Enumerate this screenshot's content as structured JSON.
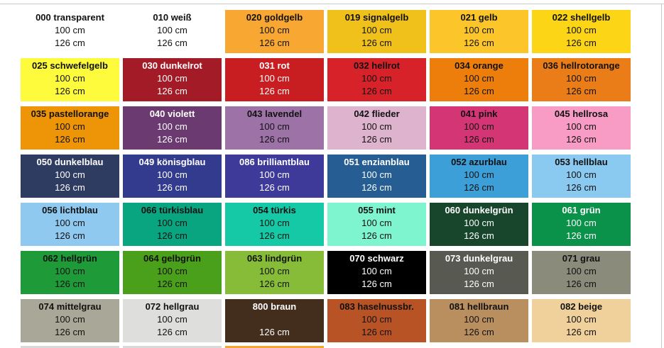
{
  "swatches": [
    {
      "name": "000 transparent",
      "w1": "100 cm",
      "w2": "126 cm",
      "bg": "#ffffff",
      "fg": "#111111"
    },
    {
      "name": "010 weiß",
      "w1": "100 cm",
      "w2": "126 cm",
      "bg": "#ffffff",
      "fg": "#111111"
    },
    {
      "name": "020 goldgelb",
      "w1": "100 cm",
      "w2": "126 cm",
      "bg": "#f8a832",
      "fg": "#111111"
    },
    {
      "name": "019 signalgelb",
      "w1": "100 cm",
      "w2": "126 cm",
      "bg": "#f0c11a",
      "fg": "#111111"
    },
    {
      "name": "021 gelb",
      "w1": "100 cm",
      "w2": "126 cm",
      "bg": "#fcc62a",
      "fg": "#111111"
    },
    {
      "name": "022 shellgelb",
      "w1": "100 cm",
      "w2": "126 cm",
      "bg": "#fcd516",
      "fg": "#111111"
    },
    {
      "name": "025 schwefelgelb",
      "w1": "100 cm",
      "w2": "126 cm",
      "bg": "#fdfb3c",
      "fg": "#111111"
    },
    {
      "name": "030 dunkelrot",
      "w1": "100 cm",
      "w2": "126 cm",
      "bg": "#a31b26",
      "fg": "#ffffff"
    },
    {
      "name": "031 rot",
      "w1": "100 cm",
      "w2": "126 cm",
      "bg": "#c81e22",
      "fg": "#ffffff"
    },
    {
      "name": "032 hellrot",
      "w1": "100 cm",
      "w2": "126 cm",
      "bg": "#d7222a",
      "fg": "#111111"
    },
    {
      "name": "034 orange",
      "w1": "100 cm",
      "w2": "126 cm",
      "bg": "#ed7e0b",
      "fg": "#111111"
    },
    {
      "name": "036 hellrotorange",
      "w1": "100 cm",
      "w2": "126 cm",
      "bg": "#ea7d18",
      "fg": "#111111"
    },
    {
      "name": "035 pastellorange",
      "w1": "100 cm",
      "w2": "126 cm",
      "bg": "#ed9407",
      "fg": "#111111"
    },
    {
      "name": "040 violett",
      "w1": "100 cm",
      "w2": "126 cm",
      "bg": "#6b3a71",
      "fg": "#ffffff"
    },
    {
      "name": "043 lavendel",
      "w1": "100 cm",
      "w2": "126 cm",
      "bg": "#9c72a7",
      "fg": "#111111"
    },
    {
      "name": "042 flieder",
      "w1": "100 cm",
      "w2": "126 cm",
      "bg": "#ddb3cd",
      "fg": "#111111"
    },
    {
      "name": "041 pink",
      "w1": "100 cm",
      "w2": "126 cm",
      "bg": "#d43675",
      "fg": "#111111"
    },
    {
      "name": "045 hellrosa",
      "w1": "100 cm",
      "w2": "126 cm",
      "bg": "#f89bc5",
      "fg": "#111111"
    },
    {
      "name": "050 dunkelblau",
      "w1": "100 cm",
      "w2": "126 cm",
      "bg": "#2f3c61",
      "fg": "#ffffff"
    },
    {
      "name": "049 könisgblau",
      "w1": "100 cm",
      "w2": "126 cm",
      "bg": "#323b8d",
      "fg": "#ffffff"
    },
    {
      "name": "086 brilliantblau",
      "w1": "100 cm",
      "w2": "126 cm",
      "bg": "#3e3a9a",
      "fg": "#ffffff"
    },
    {
      "name": "051 enzianblau",
      "w1": "100 cm",
      "w2": "126 cm",
      "bg": "#265e93",
      "fg": "#ffffff"
    },
    {
      "name": "052 azurblau",
      "w1": "100 cm",
      "w2": "126 cm",
      "bg": "#3c9fd8",
      "fg": "#111111"
    },
    {
      "name": "053 hellblau",
      "w1": "100 cm",
      "w2": "126 cm",
      "bg": "#8ac9f0",
      "fg": "#111111"
    },
    {
      "name": "056 lichtblau",
      "w1": "100 cm",
      "w2": "126 cm",
      "bg": "#90c9ef",
      "fg": "#111111"
    },
    {
      "name": "066 türkisblau",
      "w1": "100 cm",
      "w2": "126 cm",
      "bg": "#09a480",
      "fg": "#111111"
    },
    {
      "name": "054 türkis",
      "w1": "100 cm",
      "w2": "126 cm",
      "bg": "#16c9a6",
      "fg": "#111111"
    },
    {
      "name": "055 mint",
      "w1": "100 cm",
      "w2": "126 cm",
      "bg": "#7ff5cf",
      "fg": "#111111"
    },
    {
      "name": "060 dunkelgrün",
      "w1": "100 cm",
      "w2": "126 cm",
      "bg": "#17462c",
      "fg": "#ffffff"
    },
    {
      "name": "061 grün",
      "w1": "100 cm",
      "w2": "126 cm",
      "bg": "#0a914a",
      "fg": "#ffffff"
    },
    {
      "name": "062 hellgrün",
      "w1": "100 cm",
      "w2": "126 cm",
      "bg": "#1f9a38",
      "fg": "#111111"
    },
    {
      "name": "064 gelbgrün",
      "w1": "100 cm",
      "w2": "126 cm",
      "bg": "#4ba01b",
      "fg": "#111111"
    },
    {
      "name": "063 lindgrün",
      "w1": "100 cm",
      "w2": "126 cm",
      "bg": "#87bc39",
      "fg": "#111111"
    },
    {
      "name": "070 schwarz",
      "w1": "100 cm",
      "w2": "126 cm",
      "bg": "#000000",
      "fg": "#ffffff"
    },
    {
      "name": "073 dunkelgrau",
      "w1": "100 cm",
      "w2": "126 cm",
      "bg": "#585a52",
      "fg": "#ffffff"
    },
    {
      "name": "071 grau",
      "w1": "100 cm",
      "w2": "126 cm",
      "bg": "#8b8b7c",
      "fg": "#111111"
    },
    {
      "name": "074 mittelgrau",
      "w1": "100 cm",
      "w2": "126 cm",
      "bg": "#a9a797",
      "fg": "#111111"
    },
    {
      "name": "072 hellgrau",
      "w1": "100 cm",
      "w2": "126 cm",
      "bg": "#dedfdc",
      "fg": "#111111"
    },
    {
      "name": "800 braun",
      "w1": "",
      "w2": "126 cm",
      "bg": "#432d1d",
      "fg": "#ffffff"
    },
    {
      "name": "083 haselnussbr.",
      "w1": "100 cm",
      "w2": "126 cm",
      "bg": "#b85325",
      "fg": "#111111"
    },
    {
      "name": "081 hellbraun",
      "w1": "100 cm",
      "w2": "126 cm",
      "bg": "#b98f60",
      "fg": "#111111"
    },
    {
      "name": "082 beige",
      "w1": "100 cm",
      "w2": "126 cm",
      "bg": "#f1d19b",
      "fg": "#111111"
    }
  ],
  "partial_row_colors": [
    "#d9d9d9",
    "#d9d9d9",
    "#f3a733"
  ]
}
